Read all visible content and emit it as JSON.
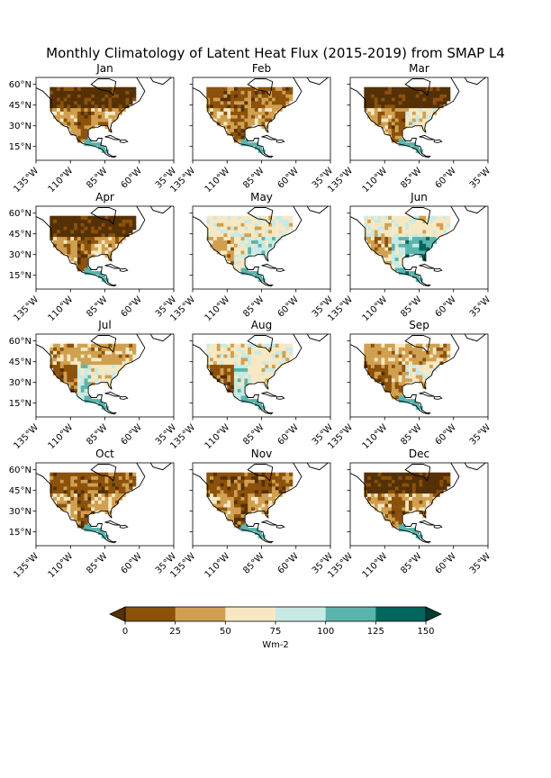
{
  "figure": {
    "title": "Monthly Climatology of Latent Heat Flux (2015-2019) from SMAP L4",
    "panels": [
      {
        "title": "Jan"
      },
      {
        "title": "Feb"
      },
      {
        "title": "Mar"
      },
      {
        "title": "Apr"
      },
      {
        "title": "May"
      },
      {
        "title": "Jun"
      },
      {
        "title": "Jul"
      },
      {
        "title": "Aug"
      },
      {
        "title": "Sep"
      },
      {
        "title": "Oct"
      },
      {
        "title": "Nov"
      },
      {
        "title": "Dec"
      }
    ],
    "lon_ticks": [
      "135°W",
      "110°W",
      "85°W",
      "60°W",
      "35°W"
    ],
    "lat_ticks": [
      "60°N",
      "45°N",
      "30°N",
      "15°N"
    ],
    "lon_range": [
      -135,
      -35
    ],
    "lat_range": [
      5,
      65
    ],
    "extent_description": "North America"
  },
  "colorbar": {
    "label": "Wm-2",
    "ticks": [
      "0",
      "25",
      "50",
      "75",
      "100",
      "125",
      "150"
    ],
    "bounds": [
      0,
      25,
      50,
      75,
      100,
      125,
      150
    ],
    "colors": [
      "#8c510a",
      "#d0a050",
      "#f6e8c3",
      "#c7eae5",
      "#5ab4ac",
      "#01665e"
    ],
    "extend": "both",
    "under_color": "#543005",
    "over_color": "#003c30"
  },
  "monthly_dominant_class": {
    "comment_levels": "class index into colorbar.colors per panel region: north, central, southeast, southwest",
    "Jan": [
      -1,
      0,
      1,
      1
    ],
    "Feb": [
      0,
      0,
      1,
      1
    ],
    "Mar": [
      -1,
      0,
      2,
      1
    ],
    "Apr": [
      -1,
      0,
      1,
      1
    ],
    "May": [
      2,
      2,
      3,
      1
    ],
    "Jun": [
      2,
      3,
      4,
      1
    ],
    "Jul": [
      1,
      3,
      2,
      0
    ],
    "Aug": [
      2,
      3,
      2,
      0
    ],
    "Sep": [
      1,
      1,
      2,
      0
    ],
    "Oct": [
      0,
      0,
      1,
      1
    ],
    "Nov": [
      0,
      0,
      1,
      1
    ],
    "Dec": [
      -1,
      0,
      1,
      1
    ]
  }
}
